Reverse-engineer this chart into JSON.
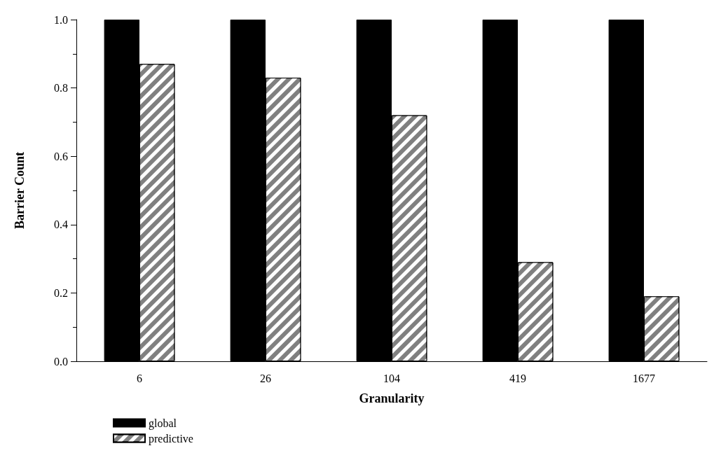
{
  "chart_data": {
    "type": "bar",
    "xlabel": "Granularity",
    "ylabel": "Barrier Count",
    "categories": [
      "6",
      "26",
      "104",
      "419",
      "1677"
    ],
    "series": [
      {
        "name": "global",
        "color": "#000000",
        "values": [
          1.0,
          1.0,
          1.0,
          1.0,
          1.0
        ]
      },
      {
        "name": "predictive",
        "color": "#808080",
        "values": [
          0.87,
          0.83,
          0.72,
          0.29,
          0.19
        ]
      }
    ],
    "ylim": [
      0,
      1
    ],
    "yticks": [
      {
        "value": 0,
        "label": "0.0"
      },
      {
        "value": 0.2,
        "label": "0.2"
      },
      {
        "value": 0.4,
        "label": "0.4"
      },
      {
        "value": 0.6,
        "label": "0.6"
      },
      {
        "value": 0.8,
        "label": "0.8"
      },
      {
        "value": 1,
        "label": "1.0"
      }
    ],
    "grid": false,
    "legend": "bottom left"
  }
}
